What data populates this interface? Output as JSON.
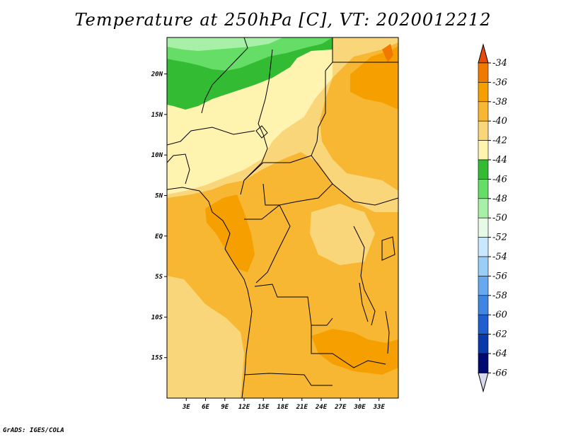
{
  "title": "Temperature at 250hPa [C], VT: 2020012212",
  "credit": "GrADS: IGES/COLA",
  "map": {
    "lon_range": [
      0,
      36
    ],
    "lat_range": [
      -20,
      24.5
    ],
    "lat_ticks": [
      {
        "value": 20,
        "label": "20N"
      },
      {
        "value": 15,
        "label": "15N"
      },
      {
        "value": 10,
        "label": "10N"
      },
      {
        "value": 5,
        "label": "5N"
      },
      {
        "value": 0,
        "label": "EQ"
      },
      {
        "value": -5,
        "label": "5S"
      },
      {
        "value": -10,
        "label": "10S"
      },
      {
        "value": -15,
        "label": "15S"
      }
    ],
    "lon_ticks": [
      {
        "value": 3,
        "label": "3E"
      },
      {
        "value": 6,
        "label": "6E"
      },
      {
        "value": 9,
        "label": "9E"
      },
      {
        "value": 12,
        "label": "12E"
      },
      {
        "value": 15,
        "label": "15E"
      },
      {
        "value": 18,
        "label": "18E"
      },
      {
        "value": 21,
        "label": "21E"
      },
      {
        "value": 24,
        "label": "24E"
      },
      {
        "value": 27,
        "label": "27E"
      },
      {
        "value": 30,
        "label": "30E"
      },
      {
        "value": 33,
        "label": "33E"
      }
    ]
  },
  "colorbar": {
    "levels": [
      "-34",
      "-36",
      "-38",
      "-40",
      "-42",
      "-44",
      "-46",
      "-48",
      "-50",
      "-52",
      "-54",
      "-56",
      "-58",
      "-60",
      "-62",
      "-64",
      "-66"
    ],
    "colors": [
      "#e84a0a",
      "#f07a00",
      "#f5a000",
      "#f8b733",
      "#fad67a",
      "#fff3b0",
      "#33bb33",
      "#66dd66",
      "#a8f0a8",
      "#e6fae6",
      "#c8e8ff",
      "#9acef6",
      "#68a8ee",
      "#3f86e2",
      "#1f5ed0",
      "#0a3aaa",
      "#000a70",
      "#d8d8ee"
    ]
  },
  "shading_colors": {
    "c34": "#f07a00",
    "c36": "#f5a000",
    "c38": "#f8b733",
    "c40": "#fad67a",
    "c42": "#fff3b0",
    "c44": "#33bb33",
    "c46": "#66dd66",
    "c48": "#a8f0a8"
  }
}
